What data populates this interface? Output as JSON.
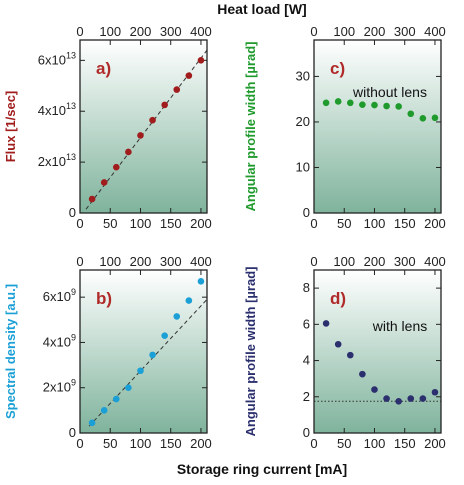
{
  "figure": {
    "top_label": "Heat load [W]",
    "bottom_label": "Storage ring current [mA]"
  },
  "colors": {
    "flux": "#a11d1d",
    "angular_no_lens": "#1f9a2c",
    "spectral": "#1a9fd6",
    "angular_lens": "#2b2f6e",
    "panel_label": "#b02a2a"
  },
  "chart_data": [
    {
      "id": "a",
      "panel_label": "a)",
      "type": "scatter",
      "ylabel": "Flux [1/sec]",
      "xlim": [
        0,
        210
      ],
      "ylim": [
        0,
        68000000000000.0
      ],
      "x_ticks": [
        0,
        50,
        100,
        150,
        200
      ],
      "top_ticks": [
        0,
        100,
        200,
        300,
        400
      ],
      "y_ticks": [
        {
          "value": 0,
          "label": "0"
        },
        {
          "value": 20000000000000.0,
          "label": "2x10",
          "exp": "13"
        },
        {
          "value": 40000000000000.0,
          "label": "4x10",
          "exp": "13"
        },
        {
          "value": 60000000000000.0,
          "label": "6x10",
          "exp": "13"
        }
      ],
      "series": [
        {
          "x": [
            20,
            40,
            60,
            80,
            100,
            120,
            140,
            160,
            180,
            200
          ],
          "values": [
            5500000000000.0,
            12000000000000.0,
            18000000000000.0,
            24000000000000.0,
            30500000000000.0,
            36500000000000.0,
            42500000000000.0,
            48500000000000.0,
            54000000000000.0,
            60000000000000.0
          ]
        }
      ],
      "fit_line": {
        "x": [
          10,
          210
        ],
        "y": [
          1500000000000.0,
          64000000000000.0
        ],
        "style": "dashed"
      },
      "grid": false
    },
    {
      "id": "c",
      "panel_label": "c)",
      "annotation": "without lens",
      "type": "scatter",
      "ylabel": "Angular profile width [µrad]",
      "xlim": [
        0,
        210
      ],
      "ylim": [
        0,
        38
      ],
      "x_ticks": [
        0,
        50,
        100,
        150,
        200
      ],
      "top_ticks": [
        0,
        100,
        200,
        300,
        400
      ],
      "y_ticks": [
        {
          "value": 0,
          "label": "0"
        },
        {
          "value": 10,
          "label": "10"
        },
        {
          "value": 20,
          "label": "20"
        },
        {
          "value": 30,
          "label": "30"
        }
      ],
      "series": [
        {
          "x": [
            20,
            40,
            60,
            80,
            100,
            120,
            140,
            160,
            180,
            200
          ],
          "values": [
            24.2,
            24.5,
            24.2,
            23.8,
            23.7,
            23.5,
            23.4,
            21.8,
            20.8,
            20.9
          ]
        }
      ],
      "grid": false
    },
    {
      "id": "b",
      "panel_label": "b)",
      "type": "scatter",
      "ylabel": "Spectral density [a.u.]",
      "xlim": [
        0,
        210
      ],
      "ylim": [
        0,
        7200000000.0
      ],
      "x_ticks": [
        0,
        50,
        100,
        150,
        200
      ],
      "top_ticks": [
        0,
        100,
        200,
        300,
        400
      ],
      "y_ticks": [
        {
          "value": 0,
          "label": "0"
        },
        {
          "value": 2000000000.0,
          "label": "2x10",
          "exp": "9"
        },
        {
          "value": 4000000000.0,
          "label": "4x10",
          "exp": "9"
        },
        {
          "value": 6000000000.0,
          "label": "6x10",
          "exp": "9"
        }
      ],
      "series": [
        {
          "x": [
            20,
            40,
            60,
            80,
            100,
            120,
            140,
            160,
            180,
            200
          ],
          "values": [
            450000000.0,
            1000000000.0,
            1500000000.0,
            2000000000.0,
            2750000000.0,
            3450000000.0,
            4300000000.0,
            5150000000.0,
            5850000000.0,
            6700000000.0
          ]
        }
      ],
      "fit_line": {
        "x": [
          15,
          210
        ],
        "y": [
          300000000.0,
          5900000000.0
        ],
        "style": "dashed"
      },
      "grid": false
    },
    {
      "id": "d",
      "panel_label": "d)",
      "annotation": "with lens",
      "type": "scatter",
      "ylabel": "Angular profile width [µrad]",
      "xlim": [
        0,
        210
      ],
      "ylim": [
        0,
        9
      ],
      "x_ticks": [
        0,
        50,
        100,
        150,
        200
      ],
      "top_ticks": [
        0,
        100,
        200,
        300,
        400
      ],
      "y_ticks": [
        {
          "value": 0,
          "label": "0"
        },
        {
          "value": 2,
          "label": "2"
        },
        {
          "value": 4,
          "label": "4"
        },
        {
          "value": 6,
          "label": "6"
        },
        {
          "value": 8,
          "label": "8"
        }
      ],
      "series": [
        {
          "x": [
            20,
            40,
            60,
            80,
            100,
            120,
            140,
            160,
            180,
            200
          ],
          "values": [
            6.05,
            4.9,
            4.3,
            3.25,
            2.4,
            1.9,
            1.75,
            1.9,
            1.9,
            2.25
          ]
        }
      ],
      "hline": {
        "y": 1.75,
        "style": "dotted"
      },
      "grid": false
    }
  ]
}
